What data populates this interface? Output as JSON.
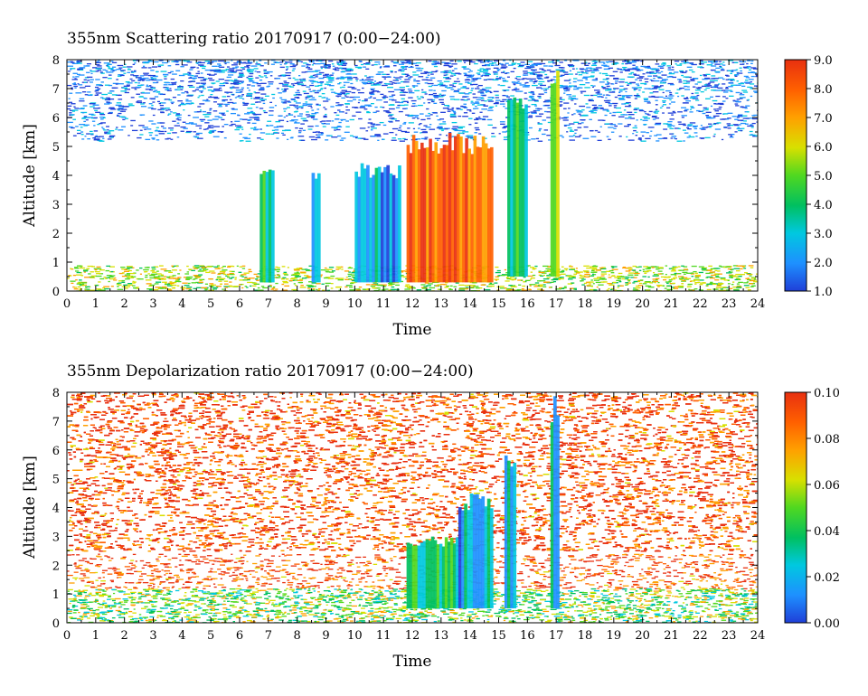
{
  "chart_data": [
    {
      "type": "heatmap",
      "title": "355nm Scattering ratio  20170917 (0:00−24:00)",
      "xlabel": "Time",
      "ylabel": "Altitude [km]",
      "x_ticks": [
        "0",
        "1",
        "2",
        "3",
        "4",
        "5",
        "6",
        "7",
        "8",
        "9",
        "10",
        "11",
        "12",
        "13",
        "14",
        "15",
        "16",
        "17",
        "18",
        "19",
        "20",
        "21",
        "22",
        "23",
        "24"
      ],
      "y_ticks": [
        "0",
        "1",
        "2",
        "3",
        "4",
        "5",
        "6",
        "7",
        "8"
      ],
      "xlim": [
        0,
        24
      ],
      "ylim": [
        0,
        8
      ],
      "colorbar": {
        "range": [
          1.0,
          9.0
        ],
        "ticks": [
          "9.0",
          "8.0",
          "7.0",
          "6.0",
          "5.0",
          "4.0",
          "3.0",
          "2.0",
          "1.0"
        ],
        "colors": [
          "#1f3fd8",
          "#1e90ff",
          "#00c8e0",
          "#00c060",
          "#50d820",
          "#d8e000",
          "#ffa000",
          "#ff6000",
          "#e83010"
        ]
      },
      "features": [
        {
          "x": [
            0,
            24
          ],
          "y": [
            5.2,
            8
          ],
          "value": 2.0,
          "note": "sparse blue upper noise"
        },
        {
          "x": [
            0,
            24
          ],
          "y": [
            0,
            0.9
          ],
          "value": 5.5,
          "note": "boundary layer"
        },
        {
          "x": [
            6.7,
            7.2
          ],
          "y": [
            0.3,
            4.5
          ],
          "value": 4.0
        },
        {
          "x": [
            8.5,
            8.8
          ],
          "y": [
            0.3,
            4.5
          ],
          "value": 3.0
        },
        {
          "x": [
            10.0,
            11.6
          ],
          "y": [
            0.3,
            4.5
          ],
          "value": 2.5
        },
        {
          "x": [
            11.8,
            14.8
          ],
          "y": [
            0.3,
            5.5
          ],
          "value": 8.0
        },
        {
          "x": [
            15.3,
            16.0
          ],
          "y": [
            0.5,
            7.0
          ],
          "value": 4.5
        },
        {
          "x": [
            16.8,
            17.1
          ],
          "y": [
            0.5,
            8.0
          ],
          "value": 5.0
        }
      ]
    },
    {
      "type": "heatmap",
      "title": "355nm Depolarization ratio  20170917 (0:00−24:00)",
      "xlabel": "Time",
      "ylabel": "Altitude [km]",
      "x_ticks": [
        "0",
        "1",
        "2",
        "3",
        "4",
        "5",
        "6",
        "7",
        "8",
        "9",
        "10",
        "11",
        "12",
        "13",
        "14",
        "15",
        "16",
        "17",
        "18",
        "19",
        "20",
        "21",
        "22",
        "23",
        "24"
      ],
      "y_ticks": [
        "0",
        "1",
        "2",
        "3",
        "4",
        "5",
        "6",
        "7",
        "8"
      ],
      "xlim": [
        0,
        24
      ],
      "ylim": [
        0,
        8
      ],
      "colorbar": {
        "range": [
          0.0,
          0.1
        ],
        "ticks": [
          "0.10",
          "0.08",
          "0.06",
          "0.04",
          "0.02",
          "0.00"
        ],
        "colors": [
          "#1f3fd8",
          "#1e90ff",
          "#00c8e0",
          "#00c060",
          "#50d820",
          "#d8e000",
          "#ffa000",
          "#ff6000",
          "#e83010"
        ]
      },
      "features": [
        {
          "x": [
            0,
            24
          ],
          "y": [
            2.5,
            8
          ],
          "value": 0.09,
          "note": "noisy red background"
        },
        {
          "x": [
            0,
            24
          ],
          "y": [
            1.2,
            2.4
          ],
          "value": 0.09,
          "note": "white gaps band"
        },
        {
          "x": [
            0,
            24
          ],
          "y": [
            0,
            1.2
          ],
          "value": 0.05,
          "note": "boundary layer"
        },
        {
          "x": [
            11.8,
            13.6
          ],
          "y": [
            0.5,
            3.0
          ],
          "value": 0.04
        },
        {
          "x": [
            13.6,
            14.8
          ],
          "y": [
            0.5,
            4.5
          ],
          "value": 0.025
        },
        {
          "x": [
            15.2,
            15.6
          ],
          "y": [
            0.5,
            6.0
          ],
          "value": 0.025
        },
        {
          "x": [
            16.8,
            17.1
          ],
          "y": [
            0.5,
            8.0
          ],
          "value": 0.025
        }
      ]
    }
  ]
}
